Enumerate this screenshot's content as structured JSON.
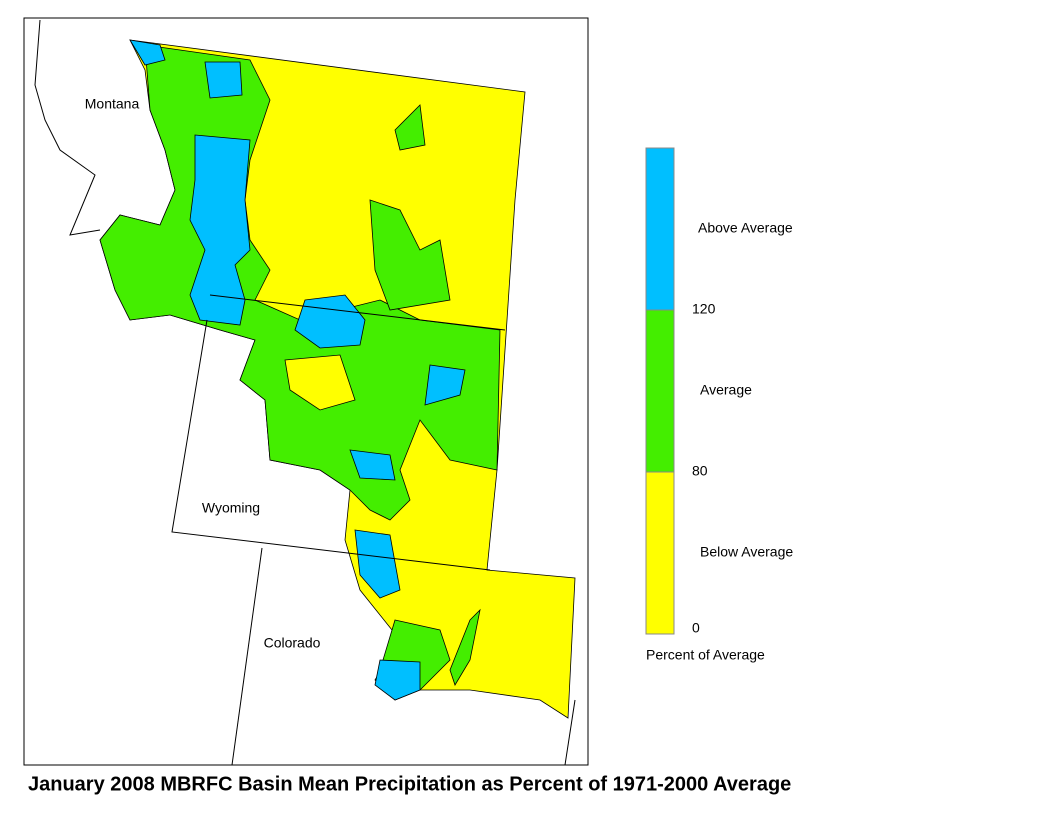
{
  "title": "January 2008 MBRFC Basin Mean Precipitation as Percent of 1971-2000 Average",
  "map": {
    "labels": [
      "Montana",
      "Wyoming",
      "Colorado"
    ]
  },
  "legend": {
    "title": "Percent of Average",
    "entries": [
      {
        "label": "Above Average",
        "color": "#00bfff"
      },
      {
        "label": "Average",
        "color": "#44ee00"
      },
      {
        "label": "Below Average",
        "color": "#ffff00"
      }
    ],
    "ticks": [
      "120",
      "80",
      "0"
    ]
  }
}
